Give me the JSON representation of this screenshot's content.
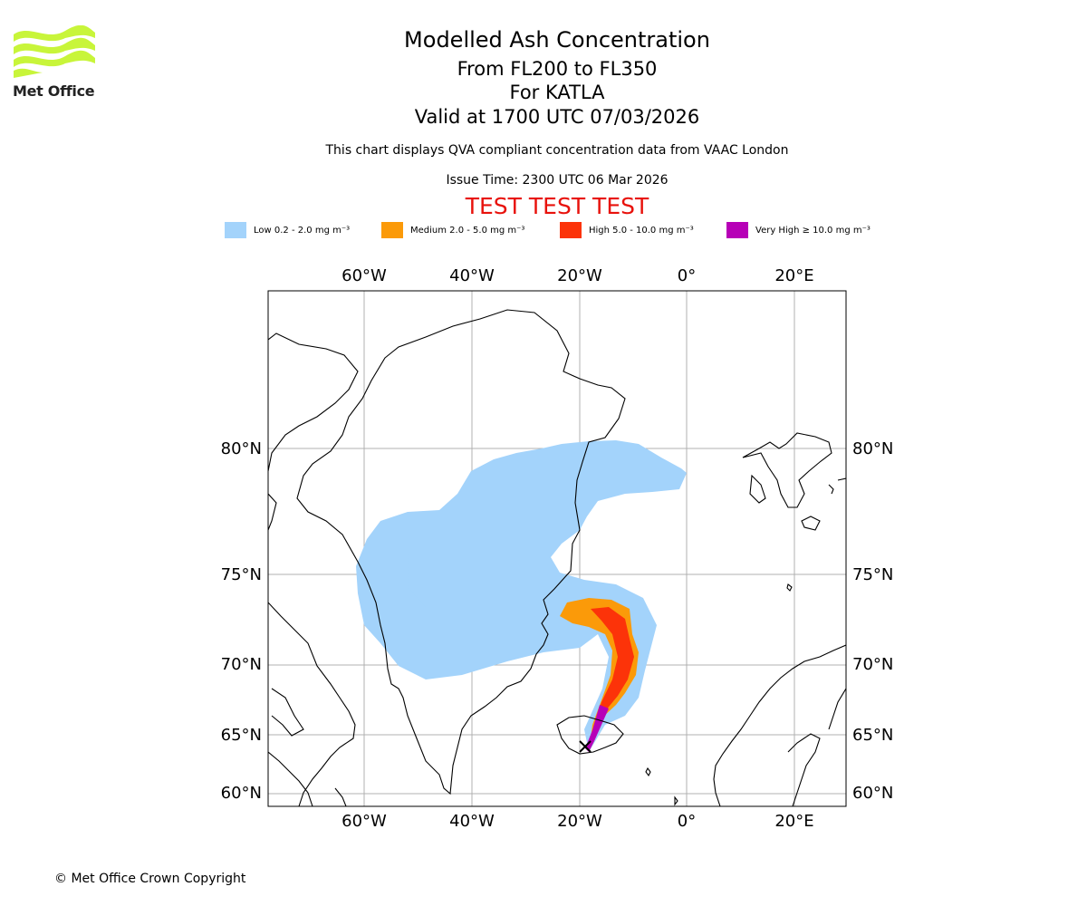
{
  "header": {
    "logo_text": "Met Office",
    "title": "Modelled Ash Concentration",
    "flight_levels": "From FL200 to FL350",
    "volcano": "For KATLA",
    "valid_time": "Valid at 1700 UTC 07/03/2026",
    "description": "This chart displays QVA compliant concentration data from VAAC London",
    "issue_time": "Issue Time: 2300 UTC 06 Mar 2026",
    "test_banner": "TEST TEST TEST"
  },
  "legend": [
    {
      "label": "Low 0.2 - 2.0 mg m⁻³",
      "color": "#a3d3fb"
    },
    {
      "label": "Medium 2.0 - 5.0 mg m⁻³",
      "color": "#fb9a09"
    },
    {
      "label": "High 5.0 - 10.0 mg m⁻³",
      "color": "#fc3309"
    },
    {
      "label": "Very High ≥ 10.0 mg m⁻³",
      "color": "#b700b7"
    }
  ],
  "map": {
    "longitude_labels": [
      "60°W",
      "40°W",
      "20°W",
      "0°",
      "20°E"
    ],
    "latitude_labels": [
      "80°N",
      "75°N",
      "70°N",
      "65°N",
      "60°N"
    ],
    "grid_color": "#b0b0b0"
  },
  "footer": {
    "copyright": "© Met Office Crown Copyright"
  }
}
